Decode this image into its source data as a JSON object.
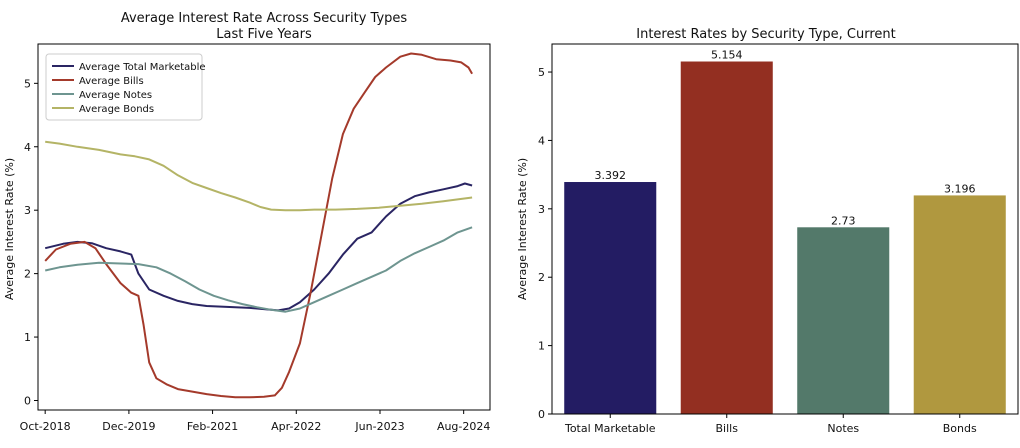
{
  "colors": {
    "total": "#2a2563",
    "bills": "#a43a2b",
    "notes": "#6e9590",
    "bonds": "#b4b466",
    "bar_total": "#231c63",
    "bar_bills": "#932f21",
    "bar_notes": "#53796a",
    "bar_bonds": "#b0983f"
  },
  "chart_data": [
    {
      "type": "line",
      "title_line1": "Average Interest Rate Across Security Types",
      "title_line2": "Last Five Years",
      "xlabel": "",
      "ylabel": "Average Interest Rate (%)",
      "xlim": [
        2018.65,
        2024.95
      ],
      "ylim": [
        -0.15,
        5.62
      ],
      "xticks": [
        {
          "v": 2018.75,
          "label": "Oct-2018"
        },
        {
          "v": 2019.917,
          "label": "Dec-2019"
        },
        {
          "v": 2021.083,
          "label": "Feb-2021"
        },
        {
          "v": 2022.25,
          "label": "Apr-2022"
        },
        {
          "v": 2023.417,
          "label": "Jun-2023"
        },
        {
          "v": 2024.583,
          "label": "Aug-2024"
        }
      ],
      "yticks": [
        0,
        1,
        2,
        3,
        4,
        5
      ],
      "legend_position": "upper-left",
      "series": [
        {
          "name": "Average Total Marketable",
          "color_key": "total",
          "points": [
            [
              2018.75,
              2.4
            ],
            [
              2019.0,
              2.47
            ],
            [
              2019.2,
              2.5
            ],
            [
              2019.4,
              2.48
            ],
            [
              2019.6,
              2.4
            ],
            [
              2019.8,
              2.35
            ],
            [
              2019.95,
              2.3
            ],
            [
              2020.05,
              2.0
            ],
            [
              2020.2,
              1.75
            ],
            [
              2020.4,
              1.65
            ],
            [
              2020.6,
              1.57
            ],
            [
              2020.8,
              1.52
            ],
            [
              2021.0,
              1.49
            ],
            [
              2021.2,
              1.48
            ],
            [
              2021.4,
              1.47
            ],
            [
              2021.6,
              1.46
            ],
            [
              2021.8,
              1.44
            ],
            [
              2022.0,
              1.42
            ],
            [
              2022.15,
              1.45
            ],
            [
              2022.3,
              1.55
            ],
            [
              2022.5,
              1.75
            ],
            [
              2022.7,
              2.0
            ],
            [
              2022.9,
              2.3
            ],
            [
              2023.1,
              2.55
            ],
            [
              2023.3,
              2.65
            ],
            [
              2023.5,
              2.9
            ],
            [
              2023.7,
              3.1
            ],
            [
              2023.9,
              3.22
            ],
            [
              2024.1,
              3.28
            ],
            [
              2024.3,
              3.33
            ],
            [
              2024.5,
              3.38
            ],
            [
              2024.6,
              3.42
            ],
            [
              2024.7,
              3.39
            ]
          ]
        },
        {
          "name": "Average Bills",
          "color_key": "bills",
          "points": [
            [
              2018.75,
              2.2
            ],
            [
              2018.9,
              2.38
            ],
            [
              2019.1,
              2.47
            ],
            [
              2019.3,
              2.5
            ],
            [
              2019.45,
              2.4
            ],
            [
              2019.6,
              2.15
            ],
            [
              2019.8,
              1.85
            ],
            [
              2019.95,
              1.7
            ],
            [
              2020.05,
              1.65
            ],
            [
              2020.12,
              1.2
            ],
            [
              2020.2,
              0.6
            ],
            [
              2020.3,
              0.35
            ],
            [
              2020.45,
              0.25
            ],
            [
              2020.6,
              0.18
            ],
            [
              2020.8,
              0.14
            ],
            [
              2021.0,
              0.1
            ],
            [
              2021.2,
              0.07
            ],
            [
              2021.4,
              0.05
            ],
            [
              2021.6,
              0.05
            ],
            [
              2021.8,
              0.06
            ],
            [
              2021.95,
              0.08
            ],
            [
              2022.05,
              0.2
            ],
            [
              2022.15,
              0.45
            ],
            [
              2022.3,
              0.9
            ],
            [
              2022.45,
              1.7
            ],
            [
              2022.6,
              2.6
            ],
            [
              2022.75,
              3.5
            ],
            [
              2022.9,
              4.2
            ],
            [
              2023.05,
              4.6
            ],
            [
              2023.2,
              4.85
            ],
            [
              2023.35,
              5.1
            ],
            [
              2023.5,
              5.25
            ],
            [
              2023.7,
              5.42
            ],
            [
              2023.85,
              5.47
            ],
            [
              2024.0,
              5.45
            ],
            [
              2024.2,
              5.38
            ],
            [
              2024.4,
              5.36
            ],
            [
              2024.55,
              5.33
            ],
            [
              2024.65,
              5.25
            ],
            [
              2024.7,
              5.15
            ]
          ]
        },
        {
          "name": "Average Notes",
          "color_key": "notes",
          "points": [
            [
              2018.75,
              2.05
            ],
            [
              2018.95,
              2.1
            ],
            [
              2019.2,
              2.14
            ],
            [
              2019.5,
              2.17
            ],
            [
              2019.8,
              2.16
            ],
            [
              2020.05,
              2.15
            ],
            [
              2020.3,
              2.1
            ],
            [
              2020.5,
              2.0
            ],
            [
              2020.7,
              1.88
            ],
            [
              2020.9,
              1.75
            ],
            [
              2021.1,
              1.65
            ],
            [
              2021.3,
              1.58
            ],
            [
              2021.5,
              1.52
            ],
            [
              2021.7,
              1.47
            ],
            [
              2021.9,
              1.43
            ],
            [
              2022.1,
              1.4
            ],
            [
              2022.3,
              1.45
            ],
            [
              2022.5,
              1.55
            ],
            [
              2022.7,
              1.65
            ],
            [
              2022.9,
              1.75
            ],
            [
              2023.1,
              1.85
            ],
            [
              2023.3,
              1.95
            ],
            [
              2023.5,
              2.05
            ],
            [
              2023.7,
              2.2
            ],
            [
              2023.9,
              2.32
            ],
            [
              2024.1,
              2.42
            ],
            [
              2024.3,
              2.52
            ],
            [
              2024.5,
              2.65
            ],
            [
              2024.7,
              2.73
            ]
          ]
        },
        {
          "name": "Average Bonds",
          "color_key": "bonds",
          "points": [
            [
              2018.75,
              4.08
            ],
            [
              2018.95,
              4.05
            ],
            [
              2019.2,
              4.0
            ],
            [
              2019.5,
              3.95
            ],
            [
              2019.8,
              3.88
            ],
            [
              2020.0,
              3.85
            ],
            [
              2020.2,
              3.8
            ],
            [
              2020.4,
              3.7
            ],
            [
              2020.6,
              3.55
            ],
            [
              2020.8,
              3.43
            ],
            [
              2021.0,
              3.35
            ],
            [
              2021.2,
              3.27
            ],
            [
              2021.4,
              3.2
            ],
            [
              2021.6,
              3.12
            ],
            [
              2021.75,
              3.05
            ],
            [
              2021.9,
              3.01
            ],
            [
              2022.1,
              3.0
            ],
            [
              2022.3,
              3.0
            ],
            [
              2022.5,
              3.01
            ],
            [
              2022.8,
              3.01
            ],
            [
              2023.1,
              3.02
            ],
            [
              2023.4,
              3.04
            ],
            [
              2023.7,
              3.07
            ],
            [
              2024.0,
              3.1
            ],
            [
              2024.3,
              3.14
            ],
            [
              2024.5,
              3.17
            ],
            [
              2024.7,
              3.2
            ]
          ]
        }
      ]
    },
    {
      "type": "bar",
      "title": "Interest Rates by Security Type, Current",
      "xlabel": "",
      "ylabel": "Average Interest Rate (%)",
      "ylim": [
        0,
        5.41
      ],
      "yticks": [
        0,
        1,
        2,
        3,
        4,
        5
      ],
      "categories": [
        "Total Marketable",
        "Bills",
        "Notes",
        "Bonds"
      ],
      "values": [
        3.392,
        5.154,
        2.73,
        3.196
      ],
      "value_labels": [
        "3.392",
        "5.154",
        "2.73",
        "3.196"
      ],
      "color_keys": [
        "bar_total",
        "bar_bills",
        "bar_notes",
        "bar_bonds"
      ]
    }
  ]
}
